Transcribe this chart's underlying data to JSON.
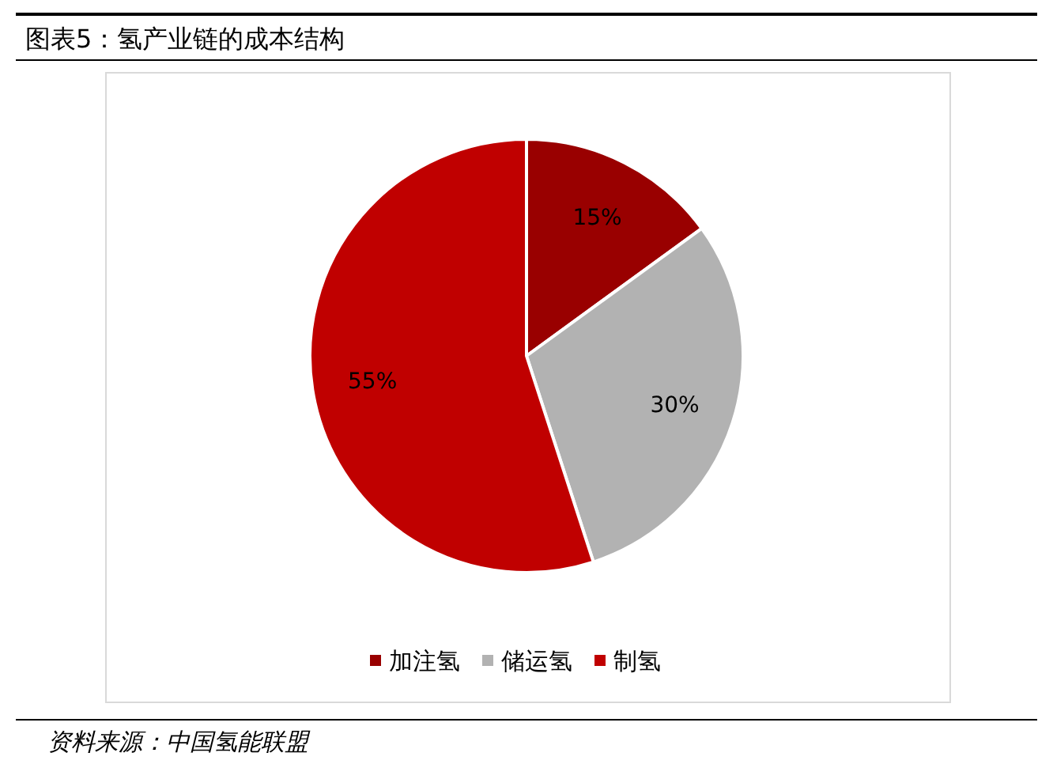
{
  "chart_data": {
    "type": "pie",
    "title": "图表5：氢产业链的成本结构",
    "categories": [
      "加注氢",
      "储运氢",
      "制氢"
    ],
    "values": [
      15,
      30,
      55
    ],
    "colors": [
      "#990000",
      "#b2b2b2",
      "#c00000"
    ],
    "value_labels": [
      "15%",
      "30%",
      "55%"
    ],
    "legend": "bottom",
    "annotations": [
      "资料来源：中国氢能联盟"
    ]
  }
}
